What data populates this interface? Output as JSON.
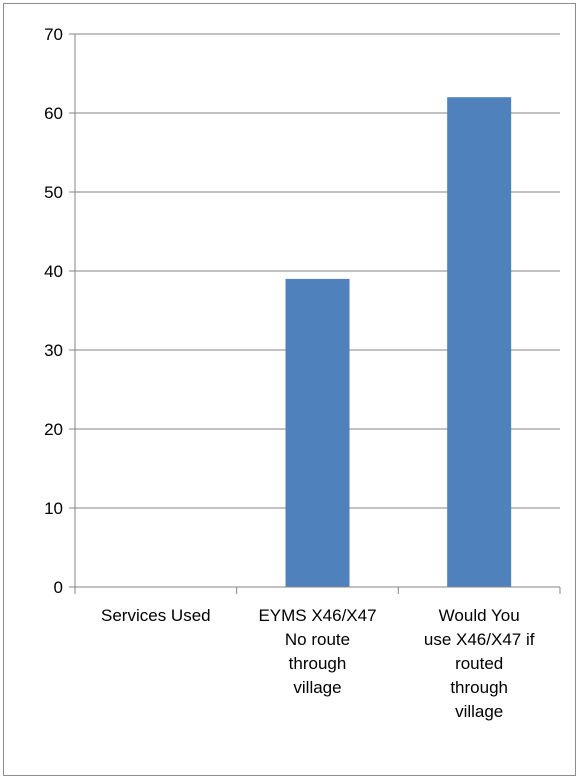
{
  "chart_data": {
    "type": "bar",
    "categories": [
      [
        "Services Used"
      ],
      [
        "EYMS X46/X47",
        "No route",
        "through",
        "village"
      ],
      [
        "Would You",
        "use X46/X47 if",
        "routed",
        "through",
        "village"
      ]
    ],
    "values": [
      0,
      39,
      62
    ],
    "ylim": [
      0,
      70
    ],
    "yticks": [
      0,
      10,
      20,
      30,
      40,
      50,
      60,
      70
    ],
    "grid": true,
    "legend": "none",
    "colors": {
      "bar": "#4f81bd",
      "grid": "#868686",
      "axis": "#868686"
    }
  }
}
